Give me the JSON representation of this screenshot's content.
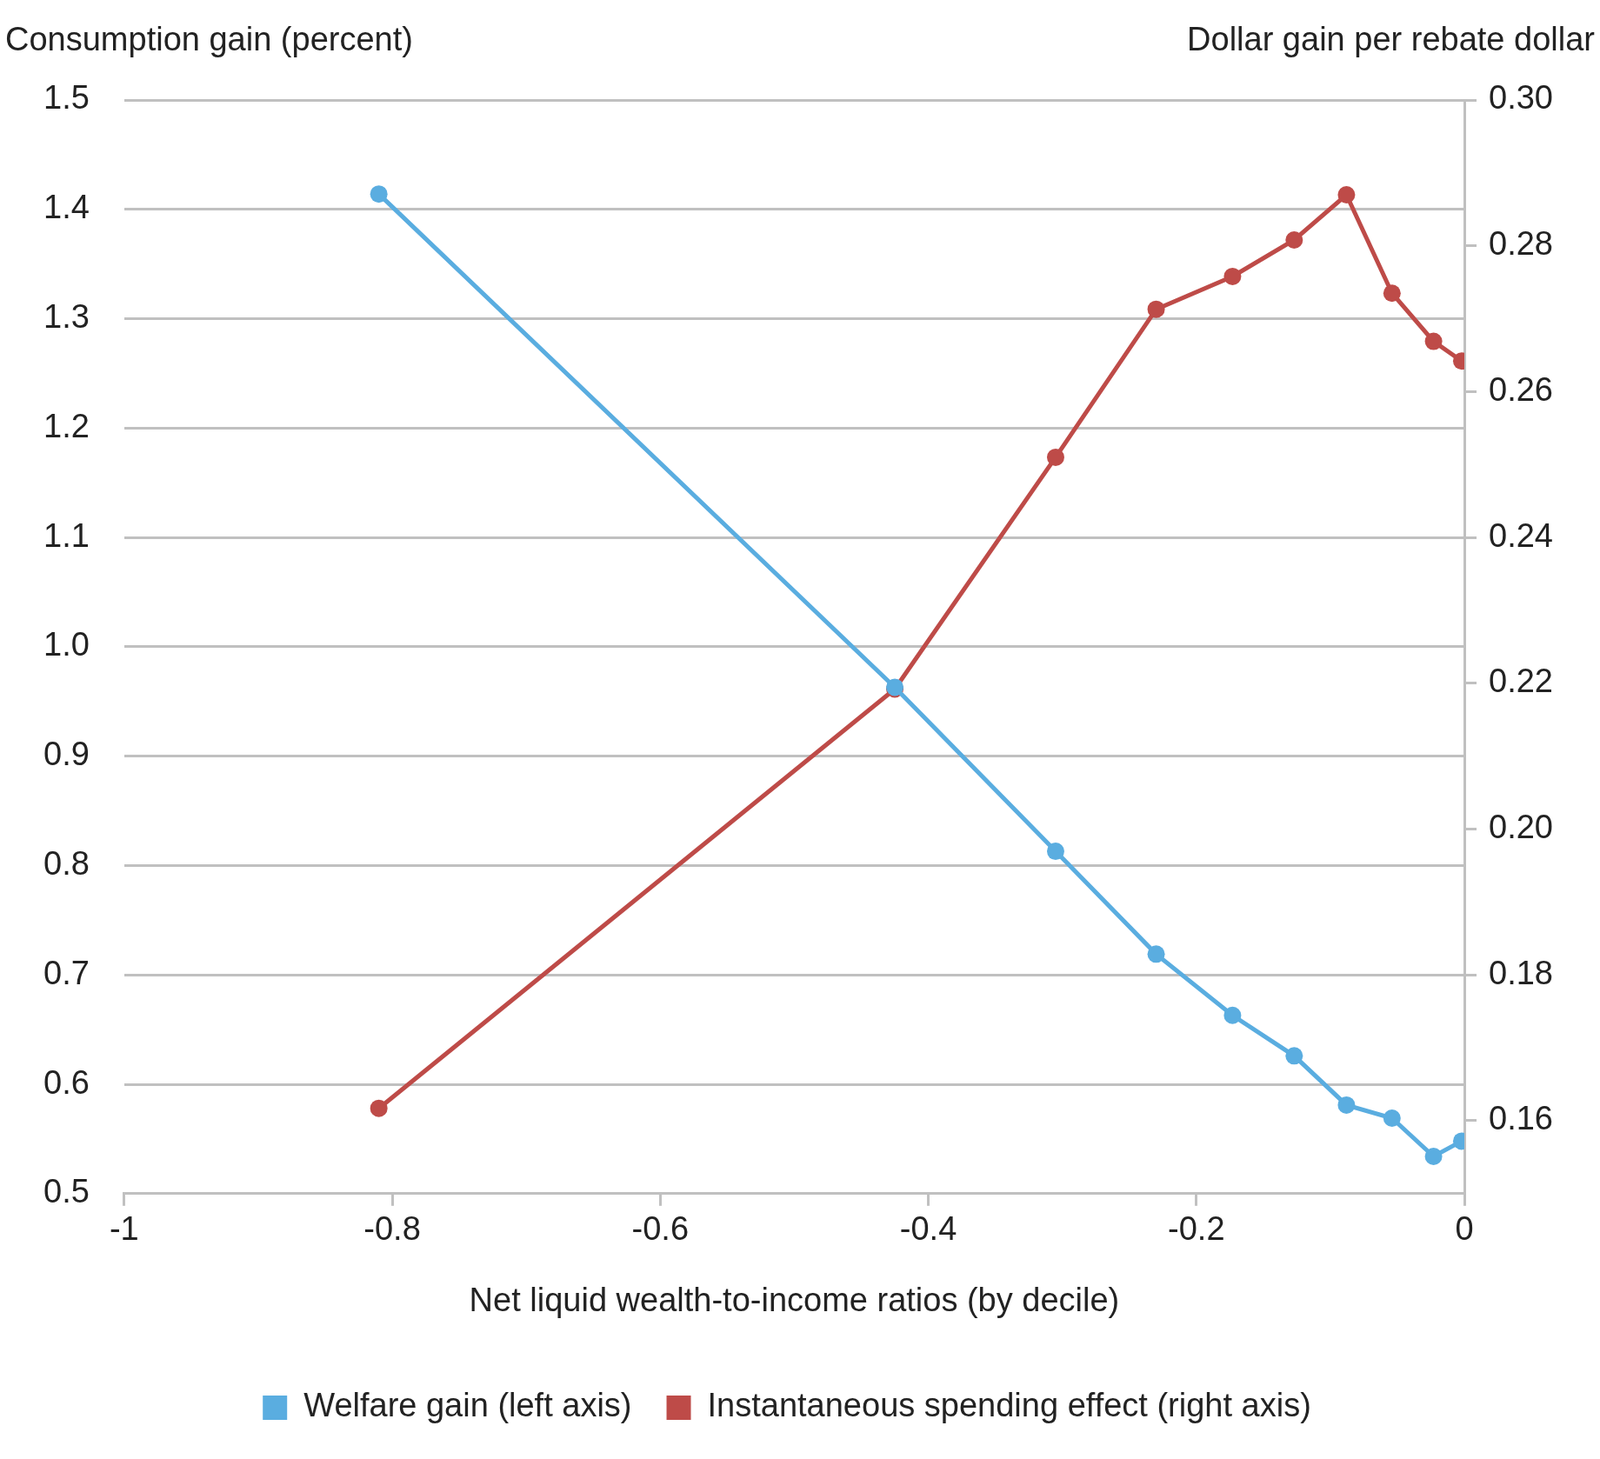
{
  "chart_data": {
    "type": "line",
    "xlabel": "Net liquid wealth-to-income ratios (by decile)",
    "ylabel": "Consumption gain (percent)",
    "y2label": "Dollar gain per rebate dollar",
    "x": [
      -0.81,
      -0.425,
      -0.305,
      -0.23,
      -0.173,
      -0.127,
      -0.088,
      -0.054,
      -0.023,
      -0.002
    ],
    "series": [
      {
        "name": "Welfare gain (left axis)",
        "color": "#5aade0",
        "marker": "circle",
        "line_style": "solid",
        "values": [
          1.414,
          0.963,
          0.813,
          0.719,
          0.663,
          0.626,
          0.581,
          0.569,
          0.534,
          0.548
        ]
      },
      {
        "name": "Instantaneous spending effect (right axis)",
        "color": "#be4b48",
        "marker": "circle",
        "line_style": "solid",
        "axis": "y2",
        "values": [
          0.1617,
          0.2192,
          0.251,
          0.2713,
          0.2758,
          0.2808,
          0.287,
          0.2735,
          0.2669,
          0.2642
        ]
      }
    ],
    "xlim": [
      -1,
      0
    ],
    "xticks": [
      -1,
      -0.8,
      -0.6,
      -0.4,
      -0.2,
      0
    ],
    "ylim": [
      0.5,
      1.5
    ],
    "yticks": [
      0.5,
      0.6,
      0.7,
      0.8,
      0.9,
      {
        "value": 1,
        "label": "1.0"
      },
      1.1,
      1.2,
      1.3,
      1.4,
      1.5
    ],
    "y2lim": [
      0.15,
      0.3
    ],
    "y2ticks": [
      0.16,
      0.18,
      {
        "value": 0.2,
        "label": "0.20"
      },
      0.22,
      0.24,
      0.26,
      0.28,
      {
        "value": 0.3,
        "label": "0.30"
      }
    ],
    "grid": true,
    "legend": "bottom"
  }
}
